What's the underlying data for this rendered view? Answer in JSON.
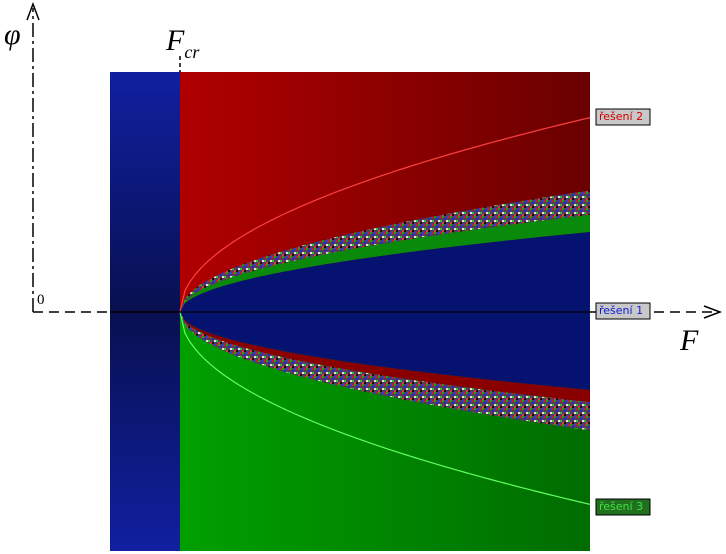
{
  "axes": {
    "y_label": "φ",
    "x_label": "F",
    "critical_label": "F",
    "critical_subscript": "cr",
    "origin": "0"
  },
  "solutions": [
    {
      "label": "řešení 2"
    },
    {
      "label": "řešení 1"
    },
    {
      "label": "řešení 3"
    }
  ]
}
